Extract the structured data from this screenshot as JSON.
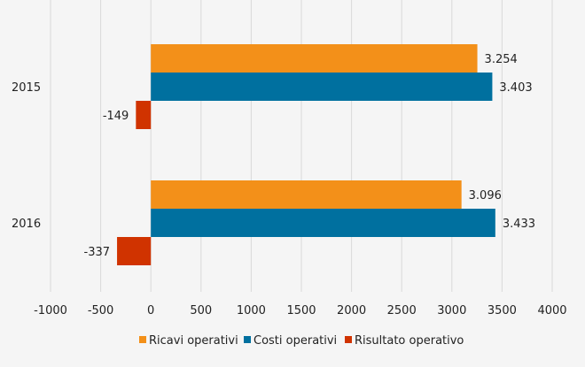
{
  "chart_data": {
    "type": "bar",
    "orientation": "horizontal",
    "categories": [
      "2015",
      "2016"
    ],
    "series": [
      {
        "name": "Ricavi operativi",
        "color": "#f39019",
        "values": [
          3254,
          3096
        ],
        "labels": [
          "3.254",
          "3.096"
        ]
      },
      {
        "name": "Costi operativi",
        "color": "#00709f",
        "values": [
          3403,
          3433
        ],
        "labels": [
          "3.403",
          "3.433"
        ]
      },
      {
        "name": "Risultato operativo",
        "color": "#d03300",
        "values": [
          -149,
          -337
        ],
        "labels": [
          "-149",
          "-337"
        ]
      }
    ],
    "xlim": [
      -1000,
      4000
    ],
    "xticks": [
      "-1000",
      "-500",
      "0",
      "500",
      "1000",
      "1500",
      "2000",
      "2500",
      "3000",
      "3500",
      "4000"
    ],
    "grid": true,
    "legend": "bottom",
    "title": "",
    "xlabel": "",
    "ylabel": ""
  }
}
